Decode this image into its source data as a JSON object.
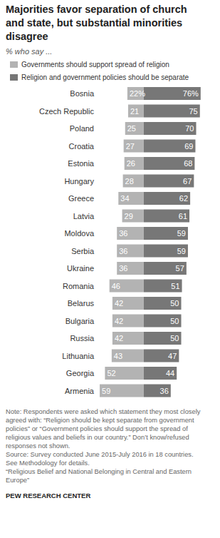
{
  "chart_data": {
    "type": "bar",
    "orientation": "horizontal",
    "title": [
      "Majorities favor separation of church",
      "and state, but substantial minorities",
      "disagree"
    ],
    "subtitle": "% who say ...",
    "categories": [
      "Bosnia",
      "Czech Republic",
      "Poland",
      "Croatia",
      "Estonia",
      "Hungary",
      "Greece",
      "Latvia",
      "Moldova",
      "Serbia",
      "Ukraine",
      "Romania",
      "Belarus",
      "Bulgaria",
      "Russia",
      "Lithuania",
      "Georgia",
      "Armenia"
    ],
    "series": [
      {
        "name": "Governments should support spread of religion",
        "color": "#b3b3b3",
        "values": [
          22,
          21,
          25,
          27,
          26,
          28,
          34,
          29,
          36,
          36,
          36,
          46,
          42,
          42,
          42,
          43,
          52,
          59
        ],
        "value_labels": [
          "22%",
          "21",
          "25",
          "27",
          "26",
          "28",
          "34",
          "29",
          "36",
          "36",
          "36",
          "46",
          "42",
          "42",
          "42",
          "43",
          "52",
          "59"
        ]
      },
      {
        "name": "Religion and government policies should be separate",
        "color": "#777777",
        "values": [
          76,
          75,
          70,
          69,
          68,
          67,
          62,
          61,
          59,
          59,
          57,
          51,
          50,
          50,
          50,
          47,
          44,
          36
        ],
        "value_labels": [
          "76%",
          "75",
          "70",
          "69",
          "68",
          "67",
          "62",
          "61",
          "59",
          "59",
          "57",
          "51",
          "50",
          "50",
          "50",
          "47",
          "44",
          "36"
        ]
      }
    ],
    "xlim": [
      0,
      80
    ],
    "data_labels": true,
    "legend": "top-left",
    "grid": false,
    "note": [
      "Note: Respondents were asked which statement they most closely",
      "agreed with: “Religion should be kept separate from government",
      "policies” or “Government policies should support the spread of",
      "religious values and beliefs in our country.” Don’t know/refused",
      "responses not shown."
    ],
    "source": [
      "Source: Survey conducted June 2015-July 2016 in 18 countries.",
      "See Methodology for details.",
      "“Religious Belief and National Belonging in Central and Eastern",
      "Europe”"
    ],
    "credit": "PEW RESEARCH CENTER"
  }
}
